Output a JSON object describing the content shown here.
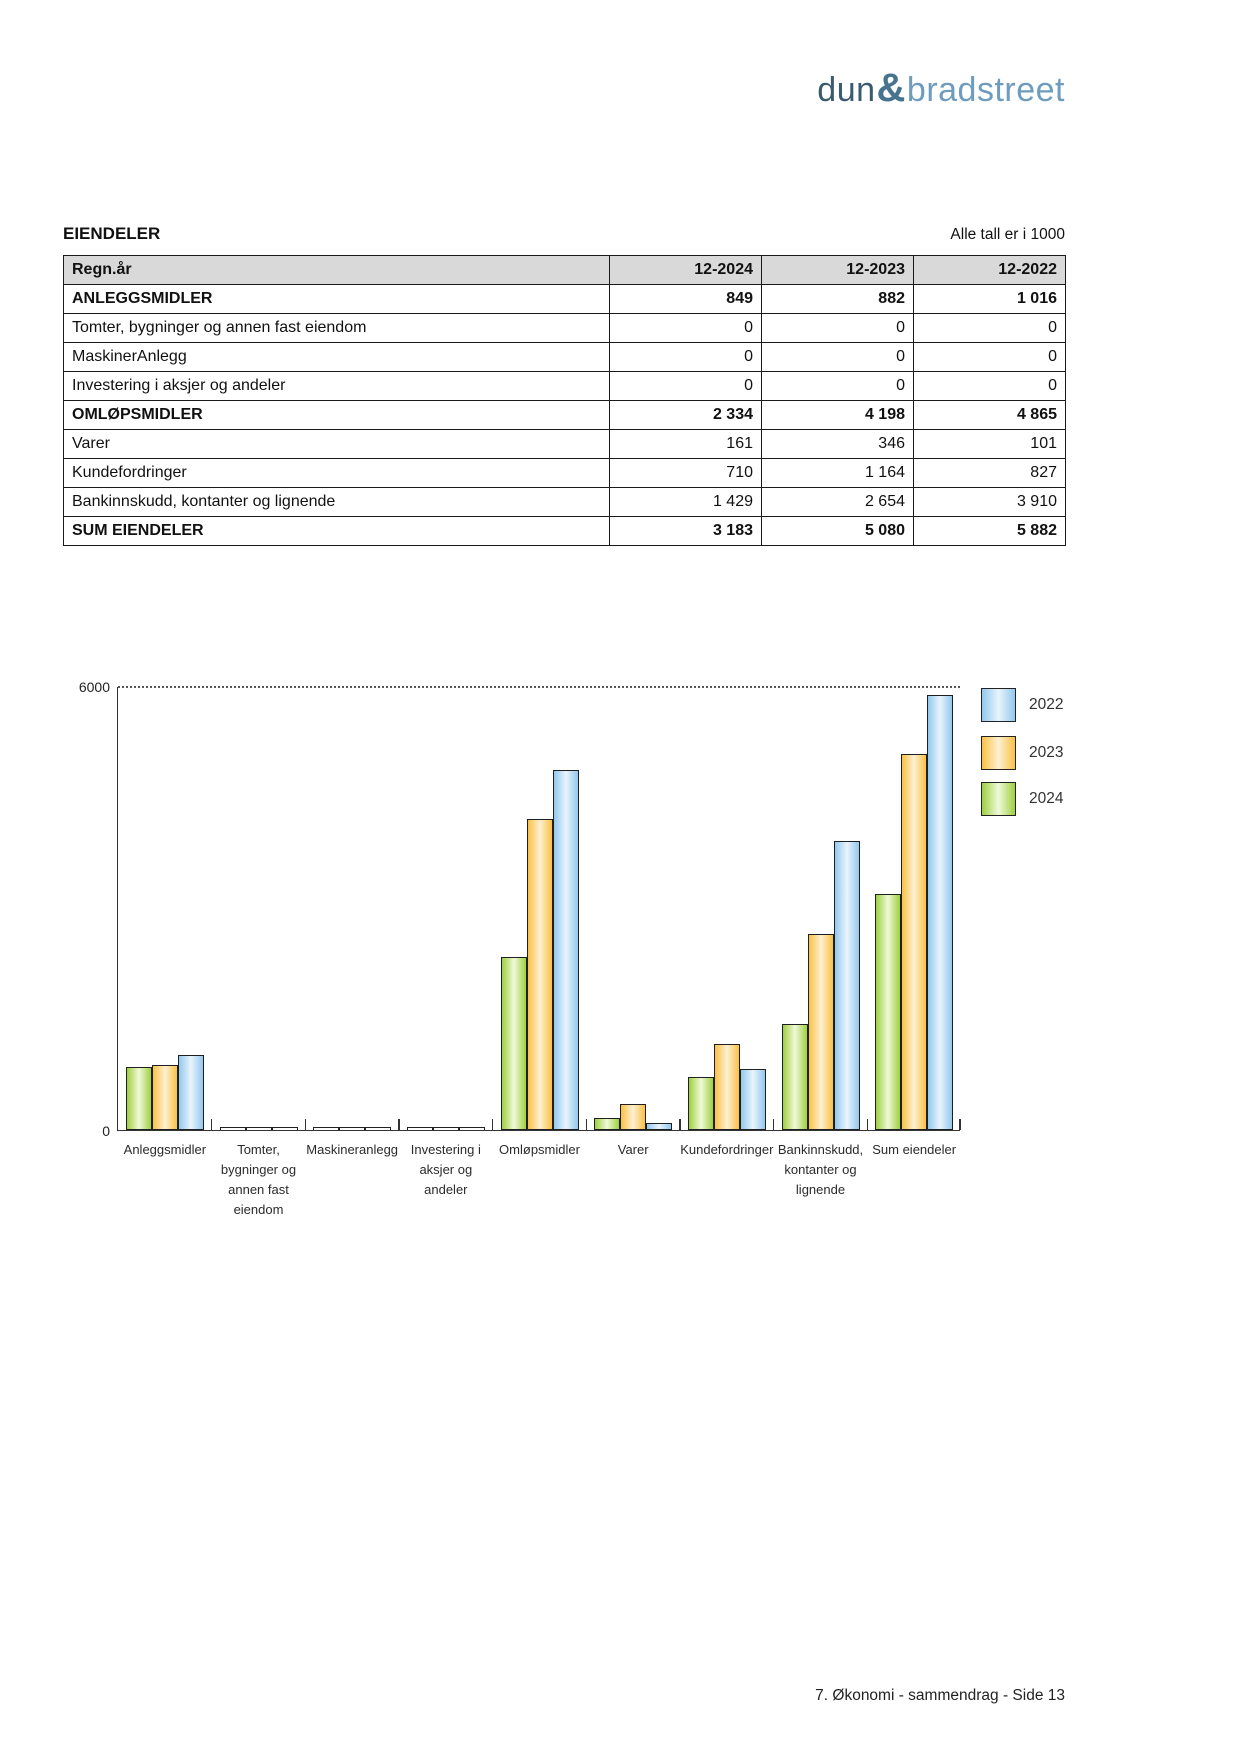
{
  "logo": {
    "part1": "dun",
    "amp": "&",
    "part2": "bradstreet"
  },
  "section": {
    "title": "EIENDELER",
    "note": "Alle tall er i 1000"
  },
  "table": {
    "header": [
      "Regn.år",
      "12-2024",
      "12-2023",
      "12-2022"
    ],
    "rows": [
      {
        "label": "ANLEGGSMIDLER",
        "values": [
          "849",
          "882",
          "1 016"
        ],
        "bold": true
      },
      {
        "label": "Tomter, bygninger og annen fast eiendom",
        "values": [
          "0",
          "0",
          "0"
        ],
        "bold": false
      },
      {
        "label": "MaskinerAnlegg",
        "values": [
          "0",
          "0",
          "0"
        ],
        "bold": false
      },
      {
        "label": "Investering i aksjer og andeler",
        "values": [
          "0",
          "0",
          "0"
        ],
        "bold": false
      },
      {
        "label": "OMLØPSMIDLER",
        "values": [
          "2 334",
          "4 198",
          "4 865"
        ],
        "bold": true
      },
      {
        "label": "Varer",
        "values": [
          "161",
          "346",
          "101"
        ],
        "bold": false
      },
      {
        "label": "Kundefordringer",
        "values": [
          "710",
          "1 164",
          "827"
        ],
        "bold": false
      },
      {
        "label": "Bankinnskudd, kontanter og lignende",
        "values": [
          "1 429",
          "2 654",
          "3 910"
        ],
        "bold": false
      },
      {
        "label": "SUM EIENDELER",
        "values": [
          "3 183",
          "5 080",
          "5 882"
        ],
        "bold": true
      }
    ]
  },
  "chart_data": {
    "type": "bar",
    "title": "",
    "categories": [
      "Anleggsmidler",
      "Tomter, bygninger og annen fast eiendom",
      "Maskineranlegg",
      "Investering i aksjer og andeler",
      "Omløpsmidler",
      "Varer",
      "Kundefordringer",
      "Bankinnskudd, kontanter og lignende",
      "Sum eiendeler"
    ],
    "category_label_lines": [
      [
        "Anleggsmidler"
      ],
      [
        "Tomter,",
        "bygninger og",
        "annen fast",
        "eiendom"
      ],
      [
        "Maskineranlegg"
      ],
      [
        "Investering i",
        "aksjer og",
        "andeler"
      ],
      [
        "Omløpsmidler"
      ],
      [
        "Varer"
      ],
      [
        "Kundefordringer"
      ],
      [
        "Bankinnskudd,",
        "kontanter og",
        "lignende"
      ],
      [
        "Sum eiendeler"
      ]
    ],
    "series": [
      {
        "name": "2024",
        "color_edge": "#9ed040",
        "color_mid": "#f0f9da",
        "values": [
          849,
          0,
          0,
          0,
          2334,
          161,
          710,
          1429,
          3183
        ]
      },
      {
        "name": "2023",
        "color_edge": "#fac145",
        "color_mid": "#fdf0d2",
        "values": [
          882,
          0,
          0,
          0,
          4198,
          346,
          1164,
          2654,
          5080
        ]
      },
      {
        "name": "2022",
        "color_edge": "#92c8ee",
        "color_mid": "#e9f4fc",
        "values": [
          1016,
          0,
          0,
          0,
          4865,
          101,
          827,
          3910,
          5882
        ]
      }
    ],
    "bar_order": [
      "2024",
      "2023",
      "2022"
    ],
    "legend_order": [
      "2022",
      "2023",
      "2024"
    ],
    "ylim": [
      0,
      6000
    ],
    "yticks": [
      0,
      6000
    ],
    "ytick_labels": [
      "0",
      "6000"
    ],
    "grid": "single dotted gridline at y=6000",
    "legend_position": "upper-right outside plot"
  },
  "footer": {
    "text": "7. Økonomi - sammendrag - Side 13"
  }
}
